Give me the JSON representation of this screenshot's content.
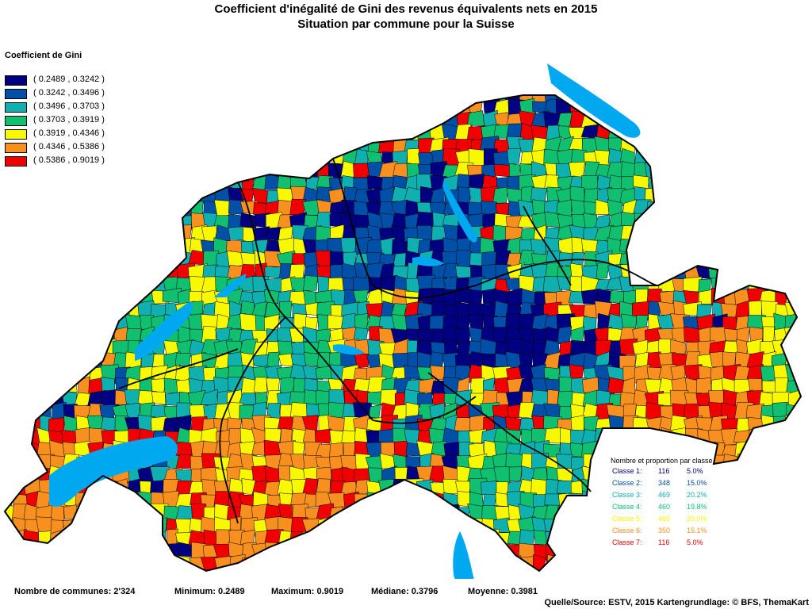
{
  "title": {
    "line1": "Coefficient d'inégalité de Gini des revenus équivalents nets en 2015",
    "line2": "Situation par commune pour la Suisse"
  },
  "legend": {
    "title": "Coefficient de Gini",
    "classes": [
      {
        "label": "( 0.2489 , 0.3242 )",
        "color": "#000080"
      },
      {
        "label": "( 0.3242 , 0.3496 )",
        "color": "#0050a8"
      },
      {
        "label": "( 0.3496 , 0.3703 )",
        "color": "#10b0b0"
      },
      {
        "label": "( 0.3703 , 0.3919 )",
        "color": "#10c070"
      },
      {
        "label": "( 0.3919 , 0.4346 )",
        "color": "#f8f800"
      },
      {
        "label": "( 0.4346 , 0.5386 )",
        "color": "#f89020"
      },
      {
        "label": "( 0.5386 , 0.9019 )",
        "color": "#f00000"
      }
    ]
  },
  "class_stats": {
    "title": "Nombre et proportion par classe",
    "rows": [
      {
        "label": "Classe  1:",
        "count": "116",
        "pct": "5.0%",
        "color": "#000080"
      },
      {
        "label": "Classe  2:",
        "count": "348",
        "pct": "15.0%",
        "color": "#0050a8"
      },
      {
        "label": "Classe  3:",
        "count": "469",
        "pct": "20.2%",
        "color": "#10b0b0"
      },
      {
        "label": "Classe  4:",
        "count": "460",
        "pct": "19.8%",
        "color": "#10c070"
      },
      {
        "label": "Classe  5:",
        "count": "465",
        "pct": "20.0%",
        "color": "#f8f800"
      },
      {
        "label": "Classe  6:",
        "count": "350",
        "pct": "15.1%",
        "color": "#f89020"
      },
      {
        "label": "Classe  7:",
        "count": "116",
        "pct": "5.0%",
        "color": "#f00000"
      }
    ]
  },
  "summary": {
    "communes": "Nombre de communes: 2'324",
    "minimum": "Minimum: 0.2489",
    "maximum": "Maximum: 0.9019",
    "median": "Médiane: 0.3796",
    "mean": "Moyenne: 0.3981"
  },
  "source": "Quelle/Source: ESTV, 2015 Kartengrundlage: © BFS, ThemaKart",
  "map_colors": {
    "water": "#00a8f0",
    "border": "#000000"
  }
}
